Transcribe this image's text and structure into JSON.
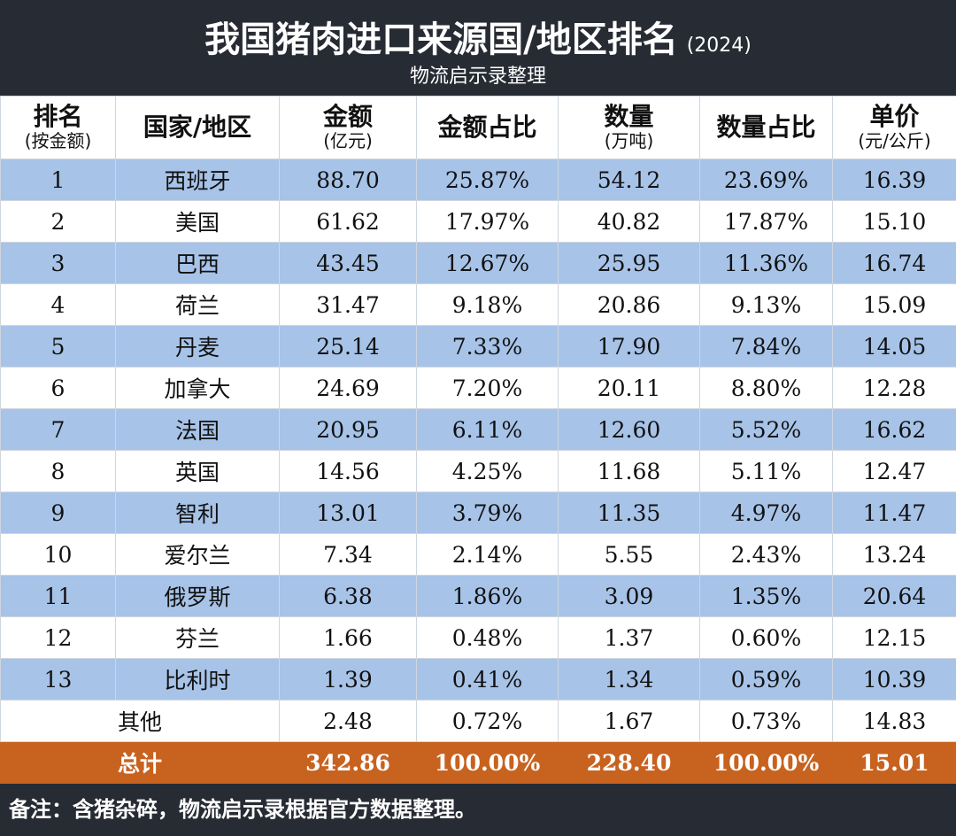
{
  "header": {
    "title": "我国猪肉进口来源国/地区排名",
    "year": "(2024)",
    "subtitle": "物流启示录整理"
  },
  "table": {
    "columns": [
      {
        "title": "排名",
        "unit": "(按金额)"
      },
      {
        "title": "国家/地区"
      },
      {
        "title": "金额",
        "unit": "(亿元)"
      },
      {
        "title": "金额占比"
      },
      {
        "title": "数量",
        "unit": "(万吨)"
      },
      {
        "title": "数量占比"
      },
      {
        "title": "单价",
        "unit": "(元/公斤)"
      }
    ],
    "rows": [
      [
        "1",
        "西班牙",
        "88.70",
        "25.87%",
        "54.12",
        "23.69%",
        "16.39"
      ],
      [
        "2",
        "美国",
        "61.62",
        "17.97%",
        "40.82",
        "17.87%",
        "15.10"
      ],
      [
        "3",
        "巴西",
        "43.45",
        "12.67%",
        "25.95",
        "11.36%",
        "16.74"
      ],
      [
        "4",
        "荷兰",
        "31.47",
        "9.18%",
        "20.86",
        "9.13%",
        "15.09"
      ],
      [
        "5",
        "丹麦",
        "25.14",
        "7.33%",
        "17.90",
        "7.84%",
        "14.05"
      ],
      [
        "6",
        "加拿大",
        "24.69",
        "7.20%",
        "20.11",
        "8.80%",
        "12.28"
      ],
      [
        "7",
        "法国",
        "20.95",
        "6.11%",
        "12.60",
        "5.52%",
        "16.62"
      ],
      [
        "8",
        "英国",
        "14.56",
        "4.25%",
        "11.68",
        "5.11%",
        "12.47"
      ],
      [
        "9",
        "智利",
        "13.01",
        "3.79%",
        "11.35",
        "4.97%",
        "11.47"
      ],
      [
        "10",
        "爱尔兰",
        "7.34",
        "2.14%",
        "5.55",
        "2.43%",
        "13.24"
      ],
      [
        "11",
        "俄罗斯",
        "6.38",
        "1.86%",
        "3.09",
        "1.35%",
        "20.64"
      ],
      [
        "12",
        "芬兰",
        "1.66",
        "0.48%",
        "1.37",
        "0.60%",
        "12.15"
      ],
      [
        "13",
        "比利时",
        "1.39",
        "0.41%",
        "1.34",
        "0.59%",
        "10.39"
      ]
    ],
    "other": [
      "其他",
      "2.48",
      "0.72%",
      "1.67",
      "0.73%",
      "14.83"
    ],
    "total": [
      "总计",
      "342.86",
      "100.00%",
      "228.40",
      "100.00%",
      "15.01"
    ]
  },
  "footnote": "备注：含猪杂碎，物流启示录根据官方数据整理。"
}
